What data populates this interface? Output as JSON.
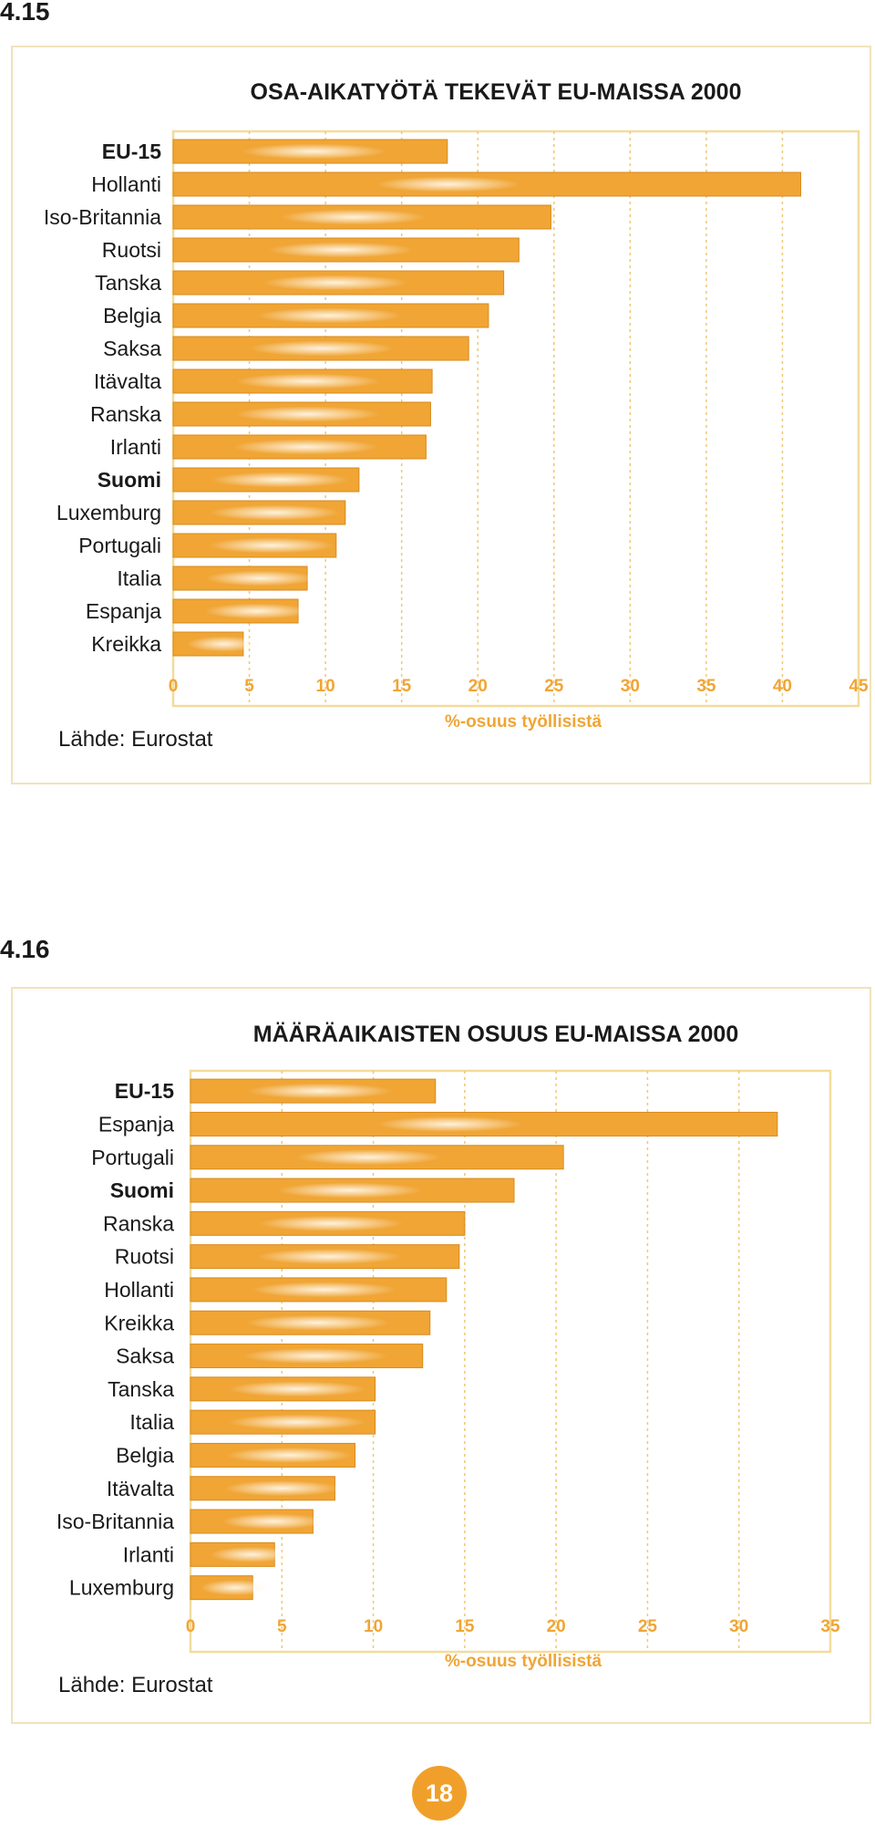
{
  "figure1": {
    "number": "4.15",
    "source": "Lähde: Eurostat"
  },
  "figure2": {
    "number": "4.16",
    "source": "Lähde: Eurostat"
  },
  "page_number": "18",
  "colors": {
    "bar": "#f0a535",
    "bar_edge": "#d98a1c",
    "bar_highlight": "#fff6e6",
    "plot_border": "#f2dc9c",
    "grid": "#f0c774",
    "axis_text": "#f0a535"
  },
  "chart_data": [
    {
      "type": "bar",
      "orientation": "horizontal",
      "title": "OSA-AIKATYÖTÄ TEKEVÄT EU-MAISSA 2000",
      "xlabel": "%-osuus työllisistä",
      "ylabel": "",
      "xlim": [
        0,
        45
      ],
      "ticks": [
        0,
        5,
        10,
        15,
        20,
        25,
        30,
        35,
        40,
        45
      ],
      "grid": true,
      "categories": [
        "EU-15",
        "Hollanti",
        "Iso-Britannia",
        "Ruotsi",
        "Tanska",
        "Belgia",
        "Saksa",
        "Itävalta",
        "Ranska",
        "Irlanti",
        "Suomi",
        "Luxemburg",
        "Portugali",
        "Italia",
        "Espanja",
        "Kreikka"
      ],
      "bold_categories": [
        "EU-15",
        "Suomi"
      ],
      "values": [
        18,
        41.2,
        24.8,
        22.7,
        21.7,
        20.7,
        19.4,
        17,
        16.9,
        16.6,
        12.2,
        11.3,
        10.7,
        8.8,
        8.2,
        4.6
      ]
    },
    {
      "type": "bar",
      "orientation": "horizontal",
      "title": "MÄÄRÄAIKAISTEN OSUUS EU-MAISSA 2000",
      "xlabel": "%-osuus työllisistä",
      "ylabel": "",
      "xlim": [
        0,
        35
      ],
      "ticks": [
        0,
        5,
        10,
        15,
        20,
        25,
        30,
        35
      ],
      "grid": true,
      "categories": [
        "EU-15",
        "Espanja",
        "Portugali",
        "Suomi",
        "Ranska",
        "Ruotsi",
        "Hollanti",
        "Kreikka",
        "Saksa",
        "Tanska",
        "Italia",
        "Belgia",
        "Itävalta",
        "Iso-Britannia",
        "Irlanti",
        "Luxemburg"
      ],
      "bold_categories": [
        "EU-15",
        "Suomi"
      ],
      "values": [
        13.4,
        32.1,
        20.4,
        17.7,
        15,
        14.7,
        14,
        13.1,
        12.7,
        10.1,
        10.1,
        9,
        7.9,
        6.7,
        4.6,
        3.4
      ]
    }
  ]
}
